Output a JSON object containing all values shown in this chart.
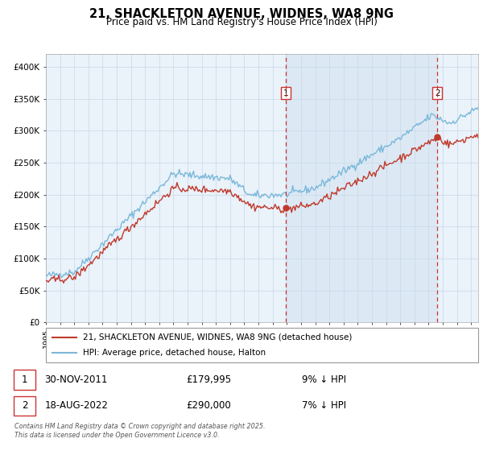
{
  "title": "21, SHACKLETON AVENUE, WIDNES, WA8 9NG",
  "subtitle": "Price paid vs. HM Land Registry's House Price Index (HPI)",
  "legend_line1": "21, SHACKLETON AVENUE, WIDNES, WA8 9NG (detached house)",
  "legend_line2": "HPI: Average price, detached house, Halton",
  "marker1_date": "30-NOV-2011",
  "marker1_price": 179995,
  "marker1_price_str": "£179,995",
  "marker1_note": "9% ↓ HPI",
  "marker1_year": 2011.917,
  "marker2_date": "18-AUG-2022",
  "marker2_price": 290000,
  "marker2_price_str": "£290,000",
  "marker2_note": "7% ↓ HPI",
  "marker2_year": 2022.625,
  "ylim": [
    0,
    420000
  ],
  "yticks": [
    0,
    50000,
    100000,
    150000,
    200000,
    250000,
    300000,
    350000,
    400000
  ],
  "ytick_labels": [
    "£0",
    "£50K",
    "£100K",
    "£150K",
    "£200K",
    "£250K",
    "£300K",
    "£350K",
    "£400K"
  ],
  "xlim_start": 1995,
  "xlim_end": 2025.5,
  "hpi_color": "#7ab8d9",
  "price_color": "#c0392b",
  "dashed_line_color": "#cc3333",
  "shade_color": "#dce9f5",
  "grid_color": "#c8d8e8",
  "plot_background": "#eaf2fa",
  "footer": "Contains HM Land Registry data © Crown copyright and database right 2025.\nThis data is licensed under the Open Government Licence v3.0."
}
